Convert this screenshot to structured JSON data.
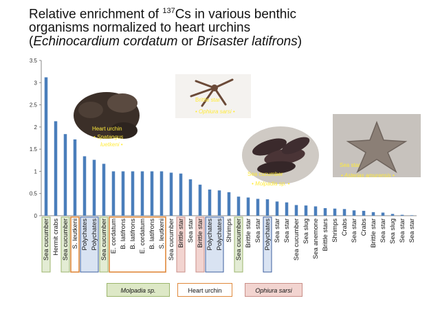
{
  "title": {
    "line1_pre": "Relative enrichment   of ",
    "line1_sup": "137",
    "line1_post": "Cs in various benthic",
    "line2": "organisms normalized to heart urchins",
    "line3_open": "(",
    "line3_sp1": "Echinocardium cordatum",
    "line3_or": " or ",
    "line3_sp2": "Brisaster latifrons",
    "line3_close": ")"
  },
  "chart_data": {
    "type": "bar",
    "ylim": [
      0,
      3.5
    ],
    "yticks": [
      "0",
      "0.5",
      "1",
      "1.5",
      "2",
      "2.5",
      "3",
      "3.5"
    ],
    "bar_color": "#4a7ebb",
    "categories": [
      "Sea cucumber",
      "Hermit crabs",
      "Sea cucumber",
      "S. leutkeni",
      "Polychates",
      "Polychates",
      "Sea cucumber",
      "E. cordatum",
      "B. latifrons",
      "B. latifrons",
      "E. cordatum",
      "B. latifrons",
      "S. leutkeni",
      "Sea cucumber",
      "Brittle star",
      "Sea star",
      "Brittle star",
      "Polychates",
      "Polychates",
      "Shrimps",
      "Sea cucumber",
      "Brittle star",
      "Sea star",
      "Polychates",
      "Sea star",
      "Sea star",
      "Sea cucumber",
      "Sea slug",
      "Sea anemone",
      "Brittle stars",
      "Shrimps",
      "Crabs",
      "Sea star",
      "Crabs",
      "Brittle star",
      "Sea star",
      "Sea slug",
      "Sea star",
      "Sea star"
    ],
    "values": [
      3.12,
      2.13,
      1.84,
      1.72,
      1.34,
      1.26,
      1.17,
      1.0,
      1.0,
      1.0,
      1.0,
      1.0,
      1.0,
      0.97,
      0.95,
      0.82,
      0.7,
      0.59,
      0.57,
      0.53,
      0.43,
      0.41,
      0.38,
      0.37,
      0.32,
      0.3,
      0.24,
      0.23,
      0.21,
      0.17,
      0.16,
      0.15,
      0.12,
      0.11,
      0.08,
      0.07,
      0.04,
      0.02,
      0.01
    ],
    "highlights": [
      {
        "group": "molpadia",
        "indices": [
          0,
          2,
          6,
          20
        ]
      },
      {
        "group": "heart_urchin",
        "indices": [
          3,
          7,
          8,
          9,
          10,
          11,
          12
        ]
      },
      {
        "group": "ophiura",
        "indices": [
          14,
          16
        ]
      },
      {
        "group": "polychaete",
        "indices": [
          4,
          5,
          17,
          18,
          23
        ]
      }
    ],
    "highlight_colors": {
      "molpadia": {
        "fill": "#e3ecd4",
        "stroke": "#9bb56b"
      },
      "heart_urchin": {
        "fill": "none",
        "stroke": "#e0883a"
      },
      "ophiura": {
        "fill": "#f2d4d0",
        "stroke": "#c98e87"
      },
      "polychaete": {
        "fill": "#d9e3f2",
        "stroke": "#3a5c9e"
      }
    },
    "photos": [
      {
        "name": "heart-urchin",
        "label": "Heart urchin",
        "species": "• Spatangus",
        "species2": "luetkeni •"
      },
      {
        "name": "brittle-star",
        "label": "Brittle star",
        "species": "• Ophiura sarsi •"
      },
      {
        "name": "sea-cucumber",
        "label": "Sea cucumber",
        "species": "• Molpadia  sp. •"
      },
      {
        "name": "sea-star",
        "label": "Sea star",
        "species": "• Asterias amurensis •"
      }
    ]
  },
  "legend": [
    {
      "label": "Molpadia sp.",
      "fill": "#dde8c6",
      "border": "#9bb56b",
      "italic": true
    },
    {
      "label": "Heart urchin",
      "fill": "#ffffff",
      "border": "#e0883a",
      "italic": false
    },
    {
      "label": "Ophiura sarsi",
      "fill": "#f2d4d0",
      "border": "#c98e87",
      "italic": true
    }
  ]
}
